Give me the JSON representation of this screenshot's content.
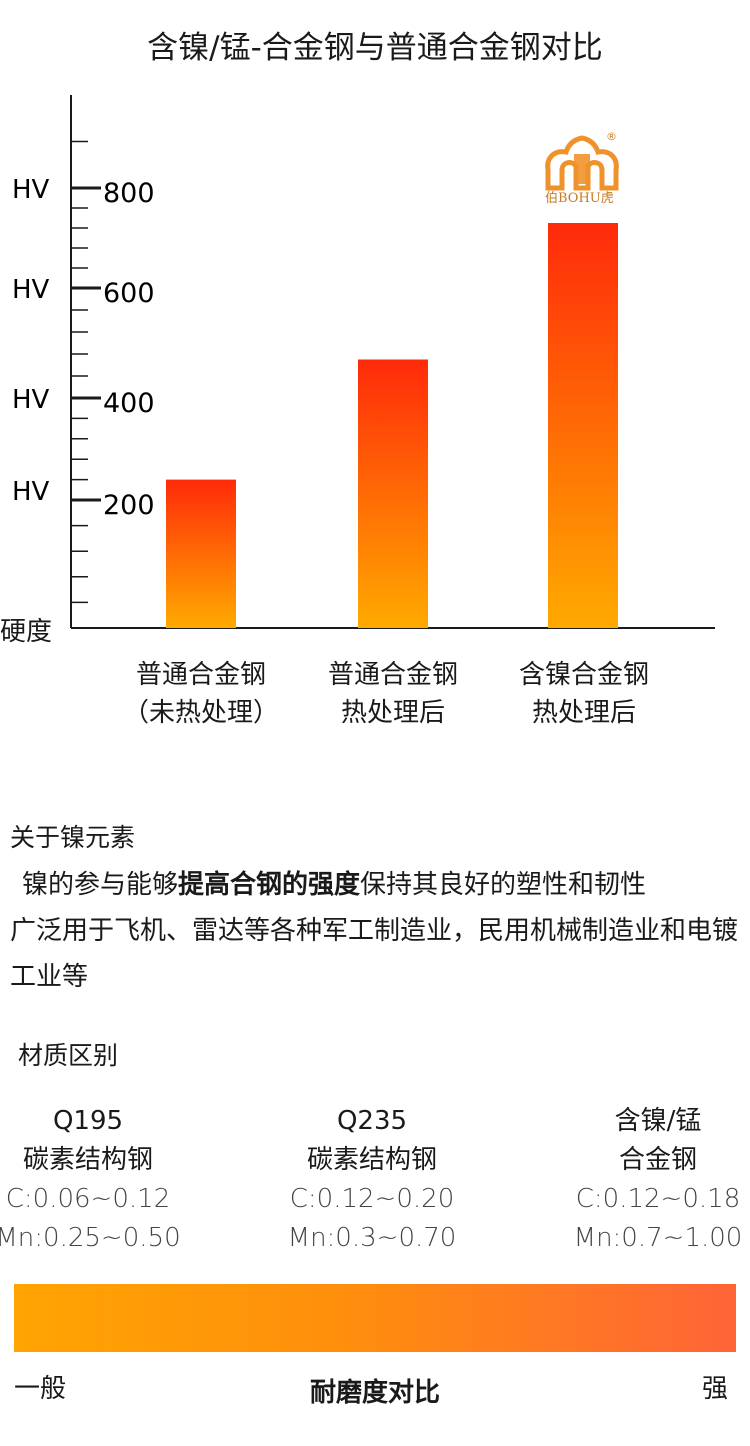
{
  "chart_data": {
    "type": "bar",
    "title": "含镍/锰-合金钢与普通合金钢对比",
    "ylabel": "硬度",
    "y_unit": "HV",
    "yticks": [
      200,
      400,
      600,
      800
    ],
    "ylim": [
      0,
      880
    ],
    "categories": [
      [
        "普通合金钢",
        "（未热处理）"
      ],
      [
        "普通合金钢",
        "热处理后"
      ],
      [
        "含镍合金钢",
        "热处理后"
      ]
    ],
    "values": [
      240,
      470,
      730
    ],
    "colors": {
      "bar_top": "#ff2a0a",
      "bar_bottom": "#ffaa00",
      "logo": "#f0922b"
    }
  },
  "logo": {
    "text": "伯BOHU虎",
    "mark": "®"
  },
  "nickel": {
    "title": "关于镍元素",
    "p1_pre": "镍的参与能够",
    "p1_em": "提高合钢的强度",
    "p1_post": "保持其良好的塑性和韧性",
    "p2": "广泛用于飞机、雷达等各种军工制造业，民用机械制造业和电镀工业等"
  },
  "materials": {
    "title": "材质区别",
    "items": [
      {
        "name1": "Q195",
        "name2": "碳素结构钢",
        "c": "C:0.06~0.12",
        "mn": "Mn:0.25~0.50"
      },
      {
        "name1": "Q235",
        "name2": "碳素结构钢",
        "c": "C:0.12~0.20",
        "mn": "Mn:0.3~0.70"
      },
      {
        "name1": "含镍/锰",
        "name2": "合金钢",
        "c": "C:0.12~0.18",
        "mn": "Mn:0.7~1.00"
      }
    ]
  },
  "wear": {
    "left": "一般",
    "title": "耐磨度对比",
    "right": "强"
  }
}
